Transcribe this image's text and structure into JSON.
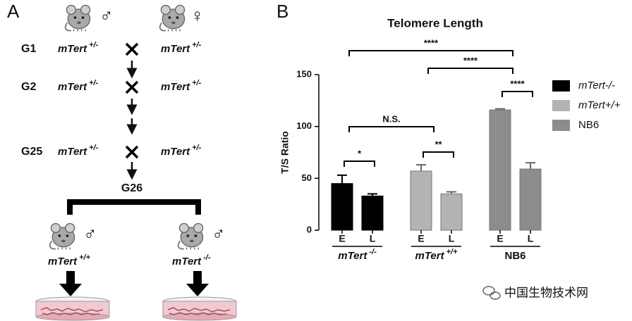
{
  "panel_a": {
    "label": "A",
    "parents": [
      "♂",
      "♀"
    ],
    "generations": [
      "G1",
      "G2",
      "G25"
    ],
    "genotype": "mTert",
    "het": "+/-",
    "g26": "G26",
    "offspring": [
      {
        "sex": "♂",
        "text": "mTert",
        "sup": "+/+"
      },
      {
        "sex": "♂",
        "text": "mTert",
        "sup": "-/-"
      }
    ]
  },
  "chart_data": {
    "type": "bar",
    "panel": "B",
    "title": "Telomere Length",
    "ylabel": "T/S Ratio",
    "categories": [
      "E",
      "L"
    ],
    "group_labels": [
      {
        "text": "mTert",
        "sup": "-/-"
      },
      {
        "text": "mTert",
        "sup": "+/+"
      },
      {
        "text": "NB6"
      }
    ],
    "series": [
      {
        "name": "mTert-/-",
        "color": "#000000",
        "values": [
          45,
          33
        ],
        "errors": [
          8,
          2
        ]
      },
      {
        "name": "mTert+/+",
        "color": "#b3b3b6",
        "values": [
          57,
          35
        ],
        "errors": [
          6,
          2
        ]
      },
      {
        "name": "NB6",
        "color": "#8c8c8c",
        "values": [
          116,
          59
        ],
        "errors": [
          1,
          6
        ]
      }
    ],
    "ylim": [
      0,
      150
    ],
    "yticks": [
      0,
      50,
      100,
      150
    ],
    "annotations": [
      {
        "label": "****",
        "from": [
          0,
          0
        ],
        "to": [
          2,
          0
        ]
      },
      {
        "label": "****",
        "from": [
          1,
          0
        ],
        "to": [
          2,
          0
        ]
      },
      {
        "label": "****",
        "from": [
          2,
          0
        ],
        "to": [
          2,
          1
        ]
      },
      {
        "label": "N.S.",
        "from": [
          0,
          0
        ],
        "to": [
          1,
          0
        ]
      },
      {
        "label": "*",
        "from": [
          0,
          0
        ],
        "to": [
          0,
          1
        ]
      },
      {
        "label": "**",
        "from": [
          1,
          0
        ],
        "to": [
          1,
          1
        ]
      }
    ],
    "legend": "right"
  },
  "watermark": "中国生物技术网"
}
